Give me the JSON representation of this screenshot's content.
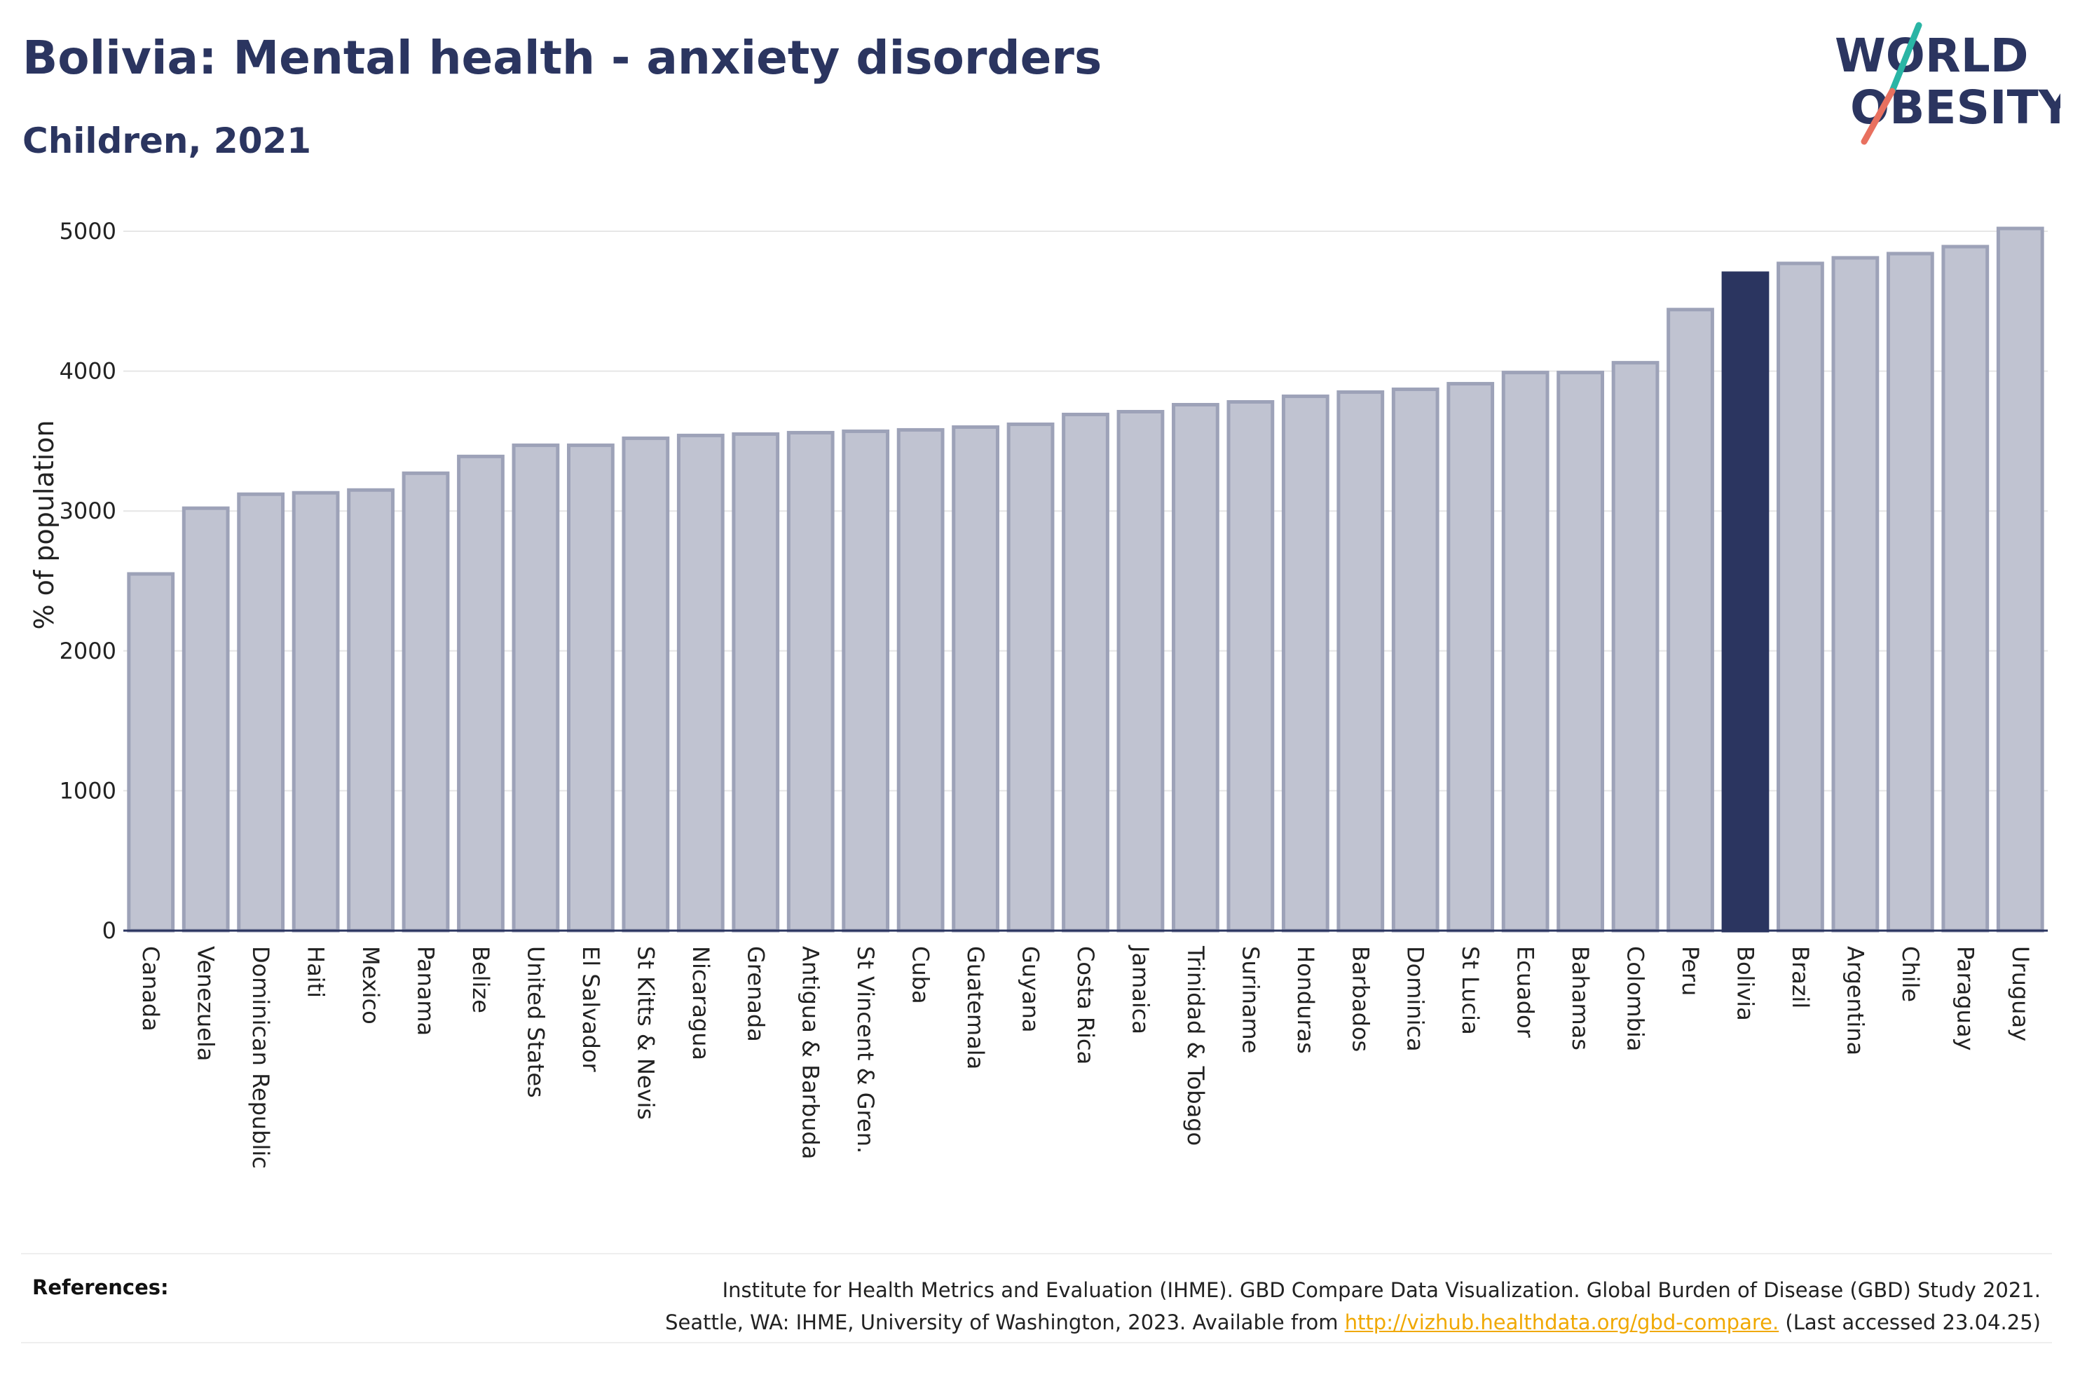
{
  "header": {
    "title": "Bolivia: Mental health - anxiety disorders",
    "subtitle": "Children, 2021"
  },
  "logo": {
    "line1": "WORLD",
    "line2": "OBESITY",
    "slash_colors": [
      "#2ab5a5",
      "#e8705f"
    ]
  },
  "colors": {
    "bar": "#c0c3d1",
    "bar_outline": "#9da2b8",
    "highlight": "#2b3560",
    "text": "#2b3560",
    "link": "#f0a800"
  },
  "chart_data": {
    "type": "bar",
    "title": "Bolivia: Mental health - anxiety disorders",
    "subtitle": "Children, 2021",
    "ylabel": "% of population",
    "xlabel": "",
    "ylim": [
      0,
      5000
    ],
    "yticks": [
      0,
      1000,
      2000,
      3000,
      4000,
      5000
    ],
    "grid": true,
    "highlight": "Bolivia",
    "categories": [
      "Canada",
      "Venezuela",
      "Dominican Republic",
      "Haiti",
      "Mexico",
      "Panama",
      "Belize",
      "United States",
      "El Salvador",
      "St Kitts & Nevis",
      "Nicaragua",
      "Grenada",
      "Antigua & Barbuda",
      "St Vincent & Gren.",
      "Cuba",
      "Guatemala",
      "Guyana",
      "Costa Rica",
      "Jamaica",
      "Trinidad & Tobago",
      "Suriname",
      "Honduras",
      "Barbados",
      "Dominica",
      "St Lucia",
      "Ecuador",
      "Bahamas",
      "Colombia",
      "Peru",
      "Bolivia",
      "Brazil",
      "Argentina",
      "Chile",
      "Paraguay",
      "Uruguay"
    ],
    "values": [
      2550,
      3020,
      3120,
      3130,
      3150,
      3270,
      3390,
      3470,
      3470,
      3520,
      3540,
      3550,
      3560,
      3570,
      3580,
      3600,
      3620,
      3690,
      3710,
      3760,
      3780,
      3820,
      3850,
      3870,
      3910,
      3990,
      3990,
      4060,
      4440,
      4700,
      4770,
      4810,
      4840,
      4890,
      5020
    ]
  },
  "references": {
    "label": "References:",
    "line1": "Institute for Health Metrics and Evaluation (IHME). GBD Compare Data Visualization. Global Burden of Disease (GBD) Study 2021.",
    "line2_pre": "Seattle, WA: IHME, University of Washington, 2023. Available from ",
    "link": "http://vizhub.healthdata.org/gbd-compare.",
    "line2_post": " (Last accessed 23.04.25)"
  }
}
